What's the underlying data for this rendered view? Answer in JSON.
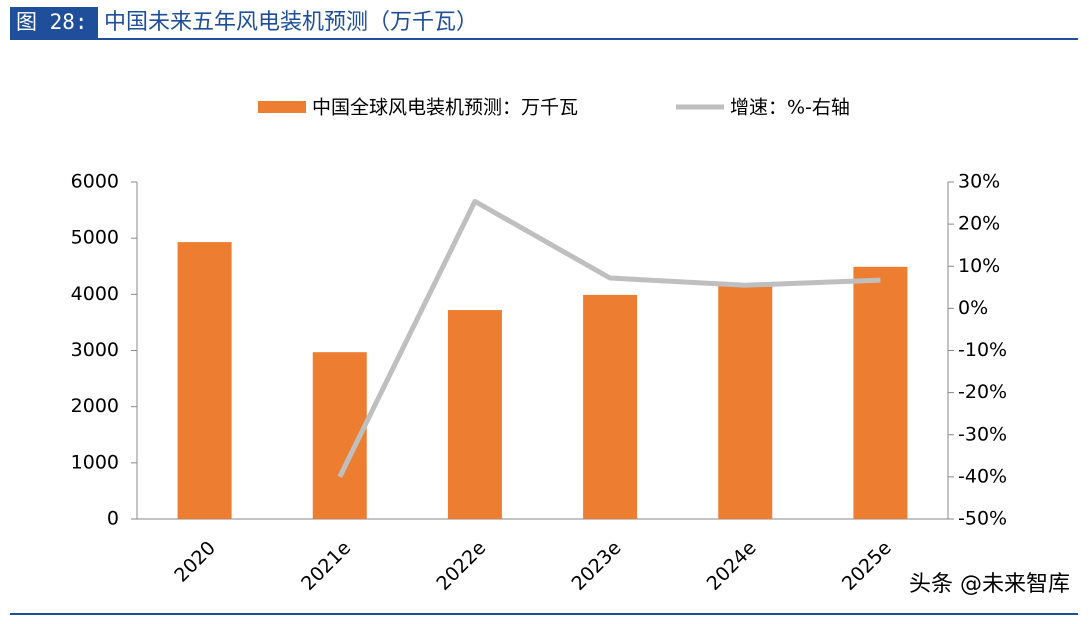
{
  "header": {
    "figure_label": "图 28:",
    "title": "中国未来五年风电装机预测（万千瓦）"
  },
  "watermark": "头条 @未来智库",
  "chart_data": {
    "type": "bar",
    "categories": [
      "2020",
      "2021e",
      "2022e",
      "2023e",
      "2024e",
      "2025e"
    ],
    "series": [
      {
        "name": "中国全球风电装机预测：万千瓦",
        "type": "bar",
        "color": "#ed7d31",
        "axis": "y",
        "values": [
          4930,
          2970,
          3720,
          3990,
          4200,
          4490
        ]
      },
      {
        "name": "增速：%-右轴",
        "type": "line",
        "color": "#bfbfbf",
        "axis": "y2",
        "values": [
          null,
          -40,
          25.4,
          7.2,
          5.5,
          6.7
        ]
      }
    ],
    "ylim": [
      0,
      6000
    ],
    "yticks": [
      0,
      1000,
      2000,
      3000,
      4000,
      5000,
      6000
    ],
    "y2lim": [
      -50,
      30
    ],
    "y2ticks": [
      {
        "value": -50,
        "label": "-50%"
      },
      {
        "value": -40,
        "label": "-40%"
      },
      {
        "value": -30,
        "label": "-30%"
      },
      {
        "value": -20,
        "label": "-20%"
      },
      {
        "value": -10,
        "label": "-10%"
      },
      {
        "value": 0,
        "label": "0%"
      },
      {
        "value": 10,
        "label": "10%"
      },
      {
        "value": 20,
        "label": "20%"
      },
      {
        "value": 30,
        "label": "30%"
      }
    ],
    "grid": false,
    "legend": "top"
  }
}
